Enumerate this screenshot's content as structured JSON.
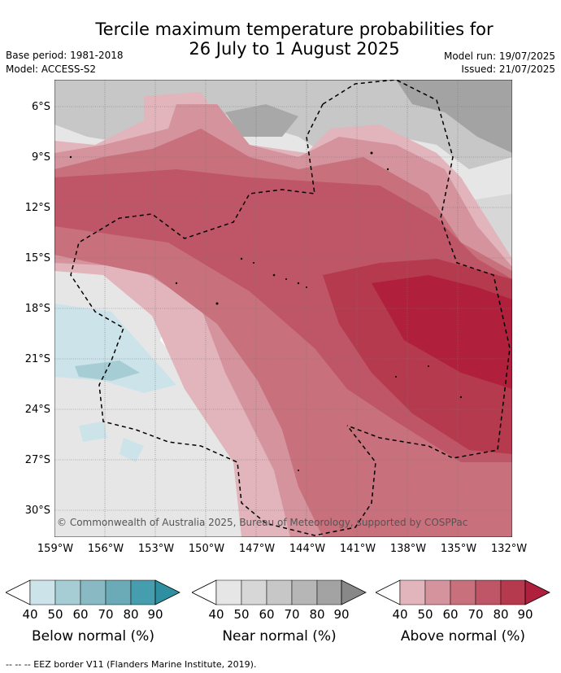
{
  "title_line1": "Tercile maximum temperature probabilities for",
  "title_line2": "26 July to 1 August 2025",
  "base_period": "Base period: 1981-2018",
  "model": "Model: ACCESS-S2",
  "model_run": "Model run: 19/07/2025",
  "issued": "Issued: 21/07/2025",
  "copyright": "© Commonwealth of Australia 2025, Bureau of Meteorology, supported by COSPPac",
  "lat_labels": [
    "6°S",
    "9°S",
    "12°S",
    "15°S",
    "18°S",
    "21°S",
    "24°S",
    "27°S",
    "30°S"
  ],
  "lon_labels": [
    "159°W",
    "156°W",
    "153°W",
    "150°W",
    "147°W",
    "144°W",
    "141°W",
    "138°W",
    "135°W",
    "132°W"
  ],
  "colorbars": [
    {
      "label": "Below normal (%)",
      "ticks": [
        "40",
        "50",
        "60",
        "70",
        "80",
        "90"
      ],
      "colors": [
        "#cde3ea",
        "#a6ccd4",
        "#89b9c3",
        "#6babb8",
        "#459dad"
      ]
    },
    {
      "label": "Near normal (%)",
      "ticks": [
        "40",
        "50",
        "60",
        "70",
        "80",
        "90"
      ],
      "colors": [
        "#e6e6e6",
        "#d7d7d7",
        "#c7c7c7",
        "#b6b6b6",
        "#a3a3a3"
      ]
    },
    {
      "label": "Above normal (%)",
      "ticks": [
        "40",
        "50",
        "60",
        "70",
        "80",
        "90"
      ],
      "colors": [
        "#e2b4bc",
        "#d4939d",
        "#c8707c",
        "#bf5667",
        "#b53a4e"
      ]
    }
  ],
  "eez_legend": "-- -- -- EEZ border V11 (Flanders Marine Institute, 2019)."
}
